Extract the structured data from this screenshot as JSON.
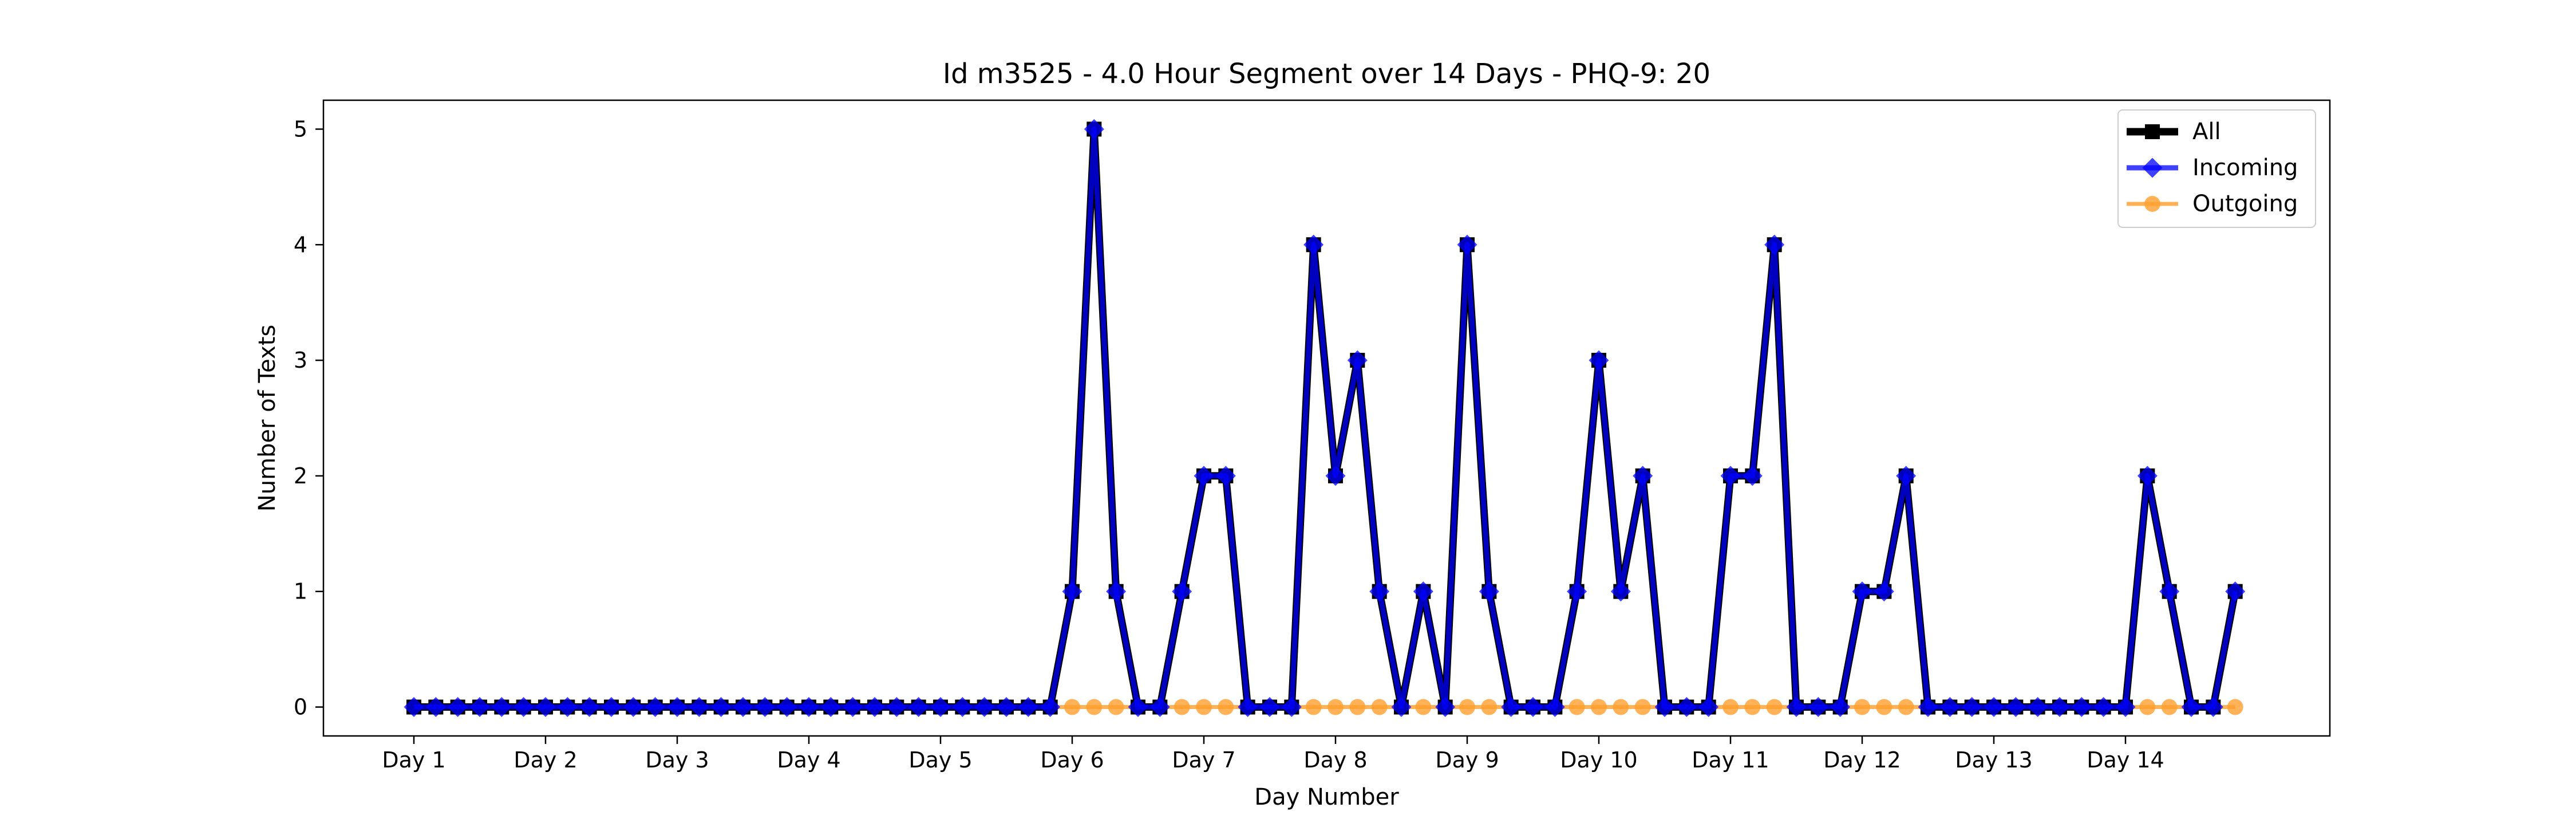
{
  "chart_data": {
    "type": "line",
    "title": "Id m3525 - 4.0 Hour Segment over 14 Days - PHQ-9: 20",
    "xlabel": "Day Number",
    "ylabel": "Number of Texts",
    "xticks": [
      "Day 1",
      "Day 2",
      "Day 3",
      "Day 4",
      "Day 5",
      "Day 6",
      "Day 7",
      "Day 8",
      "Day 9",
      "Day 10",
      "Day 11",
      "Day 12",
      "Day 13",
      "Day 14"
    ],
    "yticks": [
      0,
      1,
      2,
      3,
      4,
      5
    ],
    "ylim": [
      -0.25,
      5.25
    ],
    "segments_per_day": 6,
    "grid": false,
    "legend_position": "top-right",
    "series": [
      {
        "name": "All",
        "color": "#000000",
        "marker": "square",
        "values": [
          0,
          0,
          0,
          0,
          0,
          0,
          0,
          0,
          0,
          0,
          0,
          0,
          0,
          0,
          0,
          0,
          0,
          0,
          0,
          0,
          0,
          0,
          0,
          0,
          0,
          0,
          0,
          0,
          0,
          0,
          1,
          5,
          1,
          0,
          0,
          1,
          2,
          2,
          0,
          0,
          0,
          4,
          2,
          3,
          1,
          0,
          1,
          0,
          4,
          1,
          0,
          0,
          0,
          1,
          3,
          1,
          2,
          0,
          0,
          0,
          2,
          2,
          4,
          0,
          0,
          0,
          1,
          1,
          2,
          0,
          0,
          0,
          0,
          0,
          0,
          0,
          0,
          0,
          0,
          2,
          1,
          0,
          0,
          1
        ]
      },
      {
        "name": "Incoming",
        "color": "#0000ff",
        "marker": "diamond",
        "values": [
          0,
          0,
          0,
          0,
          0,
          0,
          0,
          0,
          0,
          0,
          0,
          0,
          0,
          0,
          0,
          0,
          0,
          0,
          0,
          0,
          0,
          0,
          0,
          0,
          0,
          0,
          0,
          0,
          0,
          0,
          1,
          5,
          1,
          0,
          0,
          1,
          2,
          2,
          0,
          0,
          0,
          4,
          2,
          3,
          1,
          0,
          1,
          0,
          4,
          1,
          0,
          0,
          0,
          1,
          3,
          1,
          2,
          0,
          0,
          0,
          2,
          2,
          4,
          0,
          0,
          0,
          1,
          1,
          2,
          0,
          0,
          0,
          0,
          0,
          0,
          0,
          0,
          0,
          0,
          2,
          1,
          0,
          0,
          1
        ]
      },
      {
        "name": "Outgoing",
        "color": "#ff9f2e",
        "marker": "circle",
        "values": [
          0,
          0,
          0,
          0,
          0,
          0,
          0,
          0,
          0,
          0,
          0,
          0,
          0,
          0,
          0,
          0,
          0,
          0,
          0,
          0,
          0,
          0,
          0,
          0,
          0,
          0,
          0,
          0,
          0,
          0,
          0,
          0,
          0,
          0,
          0,
          0,
          0,
          0,
          0,
          0,
          0,
          0,
          0,
          0,
          0,
          0,
          0,
          0,
          0,
          0,
          0,
          0,
          0,
          0,
          0,
          0,
          0,
          0,
          0,
          0,
          0,
          0,
          0,
          0,
          0,
          0,
          0,
          0,
          0,
          0,
          0,
          0,
          0,
          0,
          0,
          0,
          0,
          0,
          0,
          0,
          0,
          0,
          0,
          0
        ]
      }
    ]
  }
}
